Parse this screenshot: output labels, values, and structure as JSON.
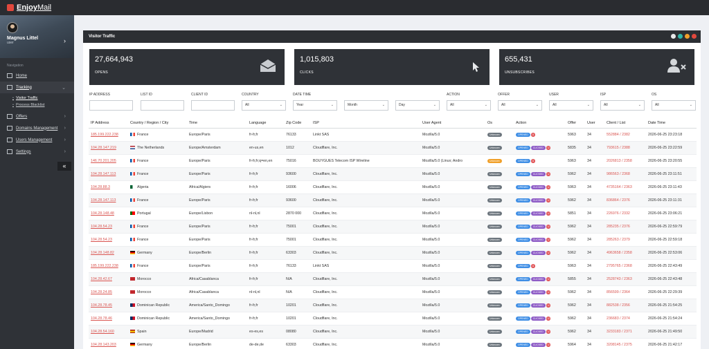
{
  "app": {
    "logo_main": "Enjoy",
    "logo_rest": "Mail"
  },
  "profile": {
    "name": "Magnus Littel",
    "sub": "user"
  },
  "sidebar": {
    "section": "Navigation",
    "items": [
      {
        "label": "Home"
      },
      {
        "label": "Tracking"
      },
      {
        "label": "Offers"
      },
      {
        "label": "Domains Management"
      },
      {
        "label": "Users Management"
      },
      {
        "label": "Settings"
      }
    ],
    "sub_items": [
      {
        "label": "Visitor Traffic"
      },
      {
        "label": "Process Blacklist"
      }
    ]
  },
  "panel": {
    "title": "Visitor Traffic"
  },
  "stats": [
    {
      "value": "27,664,943",
      "label": "OPENS",
      "icon": "envelope-open-icon"
    },
    {
      "value": "1,015,803",
      "label": "CLICKS",
      "icon": "mouse-pointer-icon"
    },
    {
      "value": "655,431",
      "label": "UNSUBSCRIBES",
      "icon": "user-remove-icon"
    }
  ],
  "filters": {
    "labels": [
      "IP ADDRESS",
      "LIST ID",
      "CLIENT ID",
      "COUNTRY",
      "DATE TIME",
      "ACTION",
      "OFFER",
      "USER",
      "ISP",
      "OS"
    ],
    "selects": {
      "country": "All",
      "year": "Year",
      "month": "Month",
      "day": "Day",
      "action": "All",
      "offer": "All",
      "user": "All",
      "isp": "All",
      "os": "All"
    }
  },
  "table": {
    "headers": [
      "IP Address",
      "Country / Region / City",
      "Time",
      "Language",
      "Zip Code",
      "ISP",
      "User Agent",
      "Os",
      "Action",
      "Offer",
      "User",
      "Client / List",
      "Date Time"
    ],
    "badges": {
      "os": "Unknown",
      "opened": "OPENED",
      "clicked": "CLICKED",
      "x": "U"
    },
    "rows": [
      {
        "ip": "185.199.222.238",
        "country": "France",
        "flag": "fr",
        "tz": "Europe/Paris",
        "lang": "fr-fr,fr",
        "zip": "76133",
        "isp": "Linkt SAS",
        "ua": "Mozilla/5.0",
        "os_warn": false,
        "clicked": false,
        "offer": "5963",
        "user": "34",
        "client": "552884 / 2382",
        "date": "2026-06-25 23:23:18"
      },
      {
        "ip": "104.28.147.219",
        "country": "The Netherlands",
        "flag": "nl",
        "tz": "Europe/Amsterdam",
        "lang": "en-us,en",
        "zip": "1012",
        "isp": "Cloudflare, Inc.",
        "ua": "Mozilla/5.0",
        "os_warn": false,
        "clicked": true,
        "offer": "5835",
        "user": "34",
        "client": "793615 / 2388",
        "date": "2026-06-25 23:22:59"
      },
      {
        "ip": "146.70.201.205",
        "country": "France",
        "flag": "fr",
        "tz": "Europe/Paris",
        "lang": "fr-fr,fr;q=en,en",
        "zip": "75016",
        "isp": "BOUYGUES Telecom ISP Wireline",
        "ua": "Mozilla/5.0 (Linux; Andro",
        "os_warn": true,
        "clicked": false,
        "offer": "5963",
        "user": "34",
        "client": "2026813 / 2358",
        "date": "2026-06-25 23:20:55"
      },
      {
        "ip": "104.28.147.113",
        "country": "France",
        "flag": "fr",
        "tz": "Europe/Paris",
        "lang": "fr-fr,fr",
        "zip": "93600",
        "isp": "Cloudflare, Inc.",
        "ua": "Mozilla/5.0",
        "os_warn": false,
        "clicked": true,
        "offer": "5962",
        "user": "34",
        "client": "986563 / 2368",
        "date": "2026-06-25 23:11:51"
      },
      {
        "ip": "104.28.88.3",
        "country": "Algeria",
        "flag": "dz",
        "tz": "Africa/Algiers",
        "lang": "fr-fr,fr",
        "zip": "16006",
        "isp": "Cloudflare, Inc.",
        "ua": "Mozilla/5.0",
        "os_warn": false,
        "clicked": true,
        "offer": "5963",
        "user": "34",
        "client": "4735164 / 2363",
        "date": "2026-06-25 23:11:43"
      },
      {
        "ip": "104.28.147.113",
        "country": "France",
        "flag": "fr",
        "tz": "Europe/Paris",
        "lang": "fr-fr,fr",
        "zip": "93600",
        "isp": "Cloudflare, Inc.",
        "ua": "Mozilla/5.0",
        "os_warn": false,
        "clicked": true,
        "offer": "5962",
        "user": "34",
        "client": "836864 / 2376",
        "date": "2026-06-25 23:11:31"
      },
      {
        "ip": "104.28.148.48",
        "country": "Portugal",
        "flag": "pt",
        "tz": "Europe/Lisbon",
        "lang": "nl-nl,nl",
        "zip": "2870 000",
        "isp": "Cloudflare, Inc.",
        "ua": "Mozilla/5.0",
        "os_warn": false,
        "clicked": true,
        "offer": "5851",
        "user": "34",
        "client": "226976 / 2332",
        "date": "2026-06-25 23:06:21"
      },
      {
        "ip": "104.28.54.23",
        "country": "France",
        "flag": "fr",
        "tz": "Europe/Paris",
        "lang": "fr-fr,fr",
        "zip": "75001",
        "isp": "Cloudflare, Inc.",
        "ua": "Mozilla/5.0",
        "os_warn": false,
        "clicked": true,
        "offer": "5962",
        "user": "34",
        "client": "285235 / 2376",
        "date": "2026-06-25 22:59:79"
      },
      {
        "ip": "104.28.54.23",
        "country": "France",
        "flag": "fr",
        "tz": "Europe/Paris",
        "lang": "fr-fr,fr",
        "zip": "75001",
        "isp": "Cloudflare, Inc.",
        "ua": "Mozilla/5.0",
        "os_warn": false,
        "clicked": true,
        "offer": "5962",
        "user": "34",
        "client": "285263 / 2379",
        "date": "2026-06-25 22:59:18"
      },
      {
        "ip": "104.28.148.82",
        "country": "Germany",
        "flag": "de",
        "tz": "Europe/Berlin",
        "lang": "fr-fr,fr",
        "zip": "63303",
        "isp": "Cloudflare, Inc.",
        "ua": "Mozilla/5.0",
        "os_warn": false,
        "clicked": true,
        "offer": "5962",
        "user": "34",
        "client": "4963658 / 2358",
        "date": "2026-06-25 22:53:06"
      },
      {
        "ip": "185.199.222.238",
        "country": "France",
        "flag": "fr",
        "tz": "Europe/Paris",
        "lang": "fr-fr,fr",
        "zip": "76133",
        "isp": "Linkt SAS",
        "ua": "Mozilla/5.0",
        "os_warn": false,
        "clicked": false,
        "offer": "5963",
        "user": "34",
        "client": "2795765 / 2368",
        "date": "2026-06-25 22:43:49"
      },
      {
        "ip": "104.28.42.67",
        "country": "Morocco",
        "flag": "ma",
        "tz": "Africa/Casablanca",
        "lang": "fr-fr,fr",
        "zip": "N/A",
        "isp": "Cloudflare, Inc.",
        "ua": "Mozilla/5.0",
        "os_warn": false,
        "clicked": true,
        "offer": "5855",
        "user": "34",
        "client": "2528743 / 2363",
        "date": "2026-06-25 22:43:48"
      },
      {
        "ip": "104.28.24.85",
        "country": "Morocco",
        "flag": "ma",
        "tz": "Africa/Casablanca",
        "lang": "nl-nl,nl",
        "zip": "N/A",
        "isp": "Cloudflare, Inc.",
        "ua": "Mozilla/5.0",
        "os_warn": false,
        "clicked": true,
        "offer": "5962",
        "user": "34",
        "client": "856599 / 2364",
        "date": "2026-06-25 22:29:39"
      },
      {
        "ip": "104.28.78.45",
        "country": "Dominican Republic",
        "flag": "do",
        "tz": "America/Santo_Domingo",
        "lang": "fr-fr,fr",
        "zip": "10201",
        "isp": "Cloudflare, Inc.",
        "ua": "Mozilla/5.0",
        "os_warn": false,
        "clicked": true,
        "offer": "5962",
        "user": "34",
        "client": "882538 / 2356",
        "date": "2026-06-25 21:54:25"
      },
      {
        "ip": "104.28.78.46",
        "country": "Dominican Republic",
        "flag": "do",
        "tz": "America/Santo_Domingo",
        "lang": "fr-fr,fr",
        "zip": "10201",
        "isp": "Cloudflare, Inc.",
        "ua": "Mozilla/5.0",
        "os_warn": false,
        "clicked": true,
        "offer": "5962",
        "user": "34",
        "client": "236683 / 2374",
        "date": "2026-06-25 21:54:24"
      },
      {
        "ip": "104.28.54.160",
        "country": "Spain",
        "flag": "es",
        "tz": "Europe/Madrid",
        "lang": "es-es,es",
        "zip": "08080",
        "isp": "Cloudflare, Inc.",
        "ua": "Mozilla/5.0",
        "os_warn": false,
        "clicked": true,
        "offer": "5962",
        "user": "34",
        "client": "3233183 / 2371",
        "date": "2026-06-25 21:49:50"
      },
      {
        "ip": "104.28.143.203",
        "country": "Germany",
        "flag": "de",
        "tz": "Europe/Berlin",
        "lang": "de-de,de",
        "zip": "63303",
        "isp": "Cloudflare, Inc.",
        "ua": "Mozilla/5.0",
        "os_warn": false,
        "clicked": true,
        "offer": "5964",
        "user": "34",
        "client": "3208145 / 2375",
        "date": "2026-06-25 21:42:17"
      }
    ]
  },
  "colors": {
    "accent": "#d9534f",
    "sidebar": "#2f3237",
    "opened": "#3f8ee5",
    "clicked": "#8e5cc6"
  }
}
